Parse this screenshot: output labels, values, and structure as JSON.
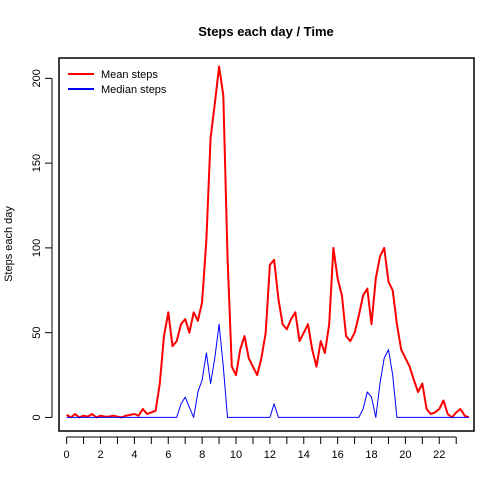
{
  "chart_data": {
    "type": "line",
    "title": "Steps each day / Time",
    "xlabel": "",
    "ylabel": "Steps each day",
    "xlim": [
      0,
      23.92
    ],
    "ylim": [
      0,
      210
    ],
    "x_ticks": [
      0,
      2,
      4,
      6,
      8,
      10,
      12,
      14,
      16,
      18,
      20,
      22
    ],
    "x_minor_ticks": [
      1,
      3,
      5,
      7,
      9,
      11,
      13,
      15,
      17,
      19,
      21,
      23
    ],
    "y_ticks": [
      0,
      50,
      100,
      150,
      200
    ],
    "grid": false,
    "legend": {
      "position": "top-left"
    },
    "series": [
      {
        "name": "Mean steps",
        "color": "#ff0000",
        "x": [
          0,
          0.25,
          0.5,
          0.75,
          1,
          1.25,
          1.5,
          1.75,
          2,
          2.25,
          2.5,
          2.75,
          3,
          3.25,
          3.5,
          3.75,
          4,
          4.25,
          4.5,
          4.75,
          5,
          5.25,
          5.5,
          5.75,
          6,
          6.25,
          6.5,
          6.75,
          7,
          7.25,
          7.5,
          7.75,
          8,
          8.25,
          8.5,
          8.75,
          9,
          9.25,
          9.5,
          9.75,
          10,
          10.25,
          10.5,
          10.75,
          11,
          11.25,
          11.5,
          11.75,
          12,
          12.25,
          12.5,
          12.75,
          13,
          13.25,
          13.5,
          13.75,
          14,
          14.25,
          14.5,
          14.75,
          15,
          15.25,
          15.5,
          15.75,
          16,
          16.25,
          16.5,
          16.75,
          17,
          17.25,
          17.5,
          17.75,
          18,
          18.25,
          18.5,
          18.75,
          19,
          19.25,
          19.5,
          19.75,
          20,
          20.25,
          20.5,
          20.75,
          21,
          21.25,
          21.5,
          21.75,
          22,
          22.25,
          22.5,
          22.75,
          23,
          23.25,
          23.5,
          23.75
        ],
        "values": [
          1.5,
          0,
          2,
          0,
          1,
          0.5,
          2,
          0,
          1,
          0.5,
          0.5,
          1,
          0.5,
          0,
          1,
          1.5,
          2,
          1,
          5,
          2,
          3,
          4,
          20,
          48,
          62,
          42,
          45,
          55,
          58,
          50,
          62,
          57,
          68,
          105,
          165,
          185,
          207,
          190,
          95,
          30,
          25,
          40,
          48,
          35,
          30,
          25,
          35,
          50,
          90,
          93,
          70,
          55,
          52,
          58,
          62,
          45,
          50,
          55,
          40,
          30,
          45,
          38,
          55,
          100,
          82,
          72,
          48,
          45,
          50,
          60,
          72,
          76,
          55,
          82,
          95,
          100,
          80,
          75,
          55,
          40,
          35,
          30,
          22,
          15,
          20,
          5,
          2,
          3,
          5,
          10,
          2,
          0,
          3,
          5,
          1,
          0
        ]
      },
      {
        "name": "Median steps",
        "color": "#0000ff",
        "x": [
          0,
          0.25,
          0.5,
          0.75,
          1,
          1.25,
          1.5,
          1.75,
          2,
          2.25,
          2.5,
          2.75,
          3,
          3.25,
          3.5,
          3.75,
          4,
          4.25,
          4.5,
          4.75,
          5,
          5.25,
          5.5,
          5.75,
          6,
          6.25,
          6.5,
          6.75,
          7,
          7.25,
          7.5,
          7.75,
          8,
          8.25,
          8.5,
          8.75,
          9,
          9.25,
          9.5,
          9.75,
          10,
          10.25,
          10.5,
          10.75,
          11,
          11.25,
          11.5,
          11.75,
          12,
          12.25,
          12.5,
          12.75,
          13,
          13.25,
          13.5,
          13.75,
          14,
          14.25,
          14.5,
          14.75,
          15,
          15.25,
          15.5,
          15.75,
          16,
          16.25,
          16.5,
          16.75,
          17,
          17.25,
          17.5,
          17.75,
          18,
          18.25,
          18.5,
          18.75,
          19,
          19.25,
          19.5,
          19.75,
          20,
          20.25,
          20.5,
          20.75,
          21,
          21.25,
          21.5,
          21.75,
          22,
          22.25,
          22.5,
          22.75,
          23,
          23.25,
          23.5,
          23.75
        ],
        "values": [
          0,
          0,
          0,
          0,
          0,
          0,
          0,
          0,
          0,
          0,
          0,
          0,
          0,
          0,
          0,
          0,
          0,
          0,
          0,
          0,
          0,
          0,
          0,
          0,
          0,
          0,
          0,
          8,
          12,
          6,
          0,
          15,
          22,
          38,
          20,
          35,
          55,
          30,
          0,
          0,
          0,
          0,
          0,
          0,
          0,
          0,
          0,
          0,
          0,
          8,
          0,
          0,
          0,
          0,
          0,
          0,
          0,
          0,
          0,
          0,
          0,
          0,
          0,
          0,
          0,
          0,
          0,
          0,
          0,
          0,
          5,
          15,
          12,
          0,
          20,
          35,
          40,
          25,
          0,
          0,
          0,
          0,
          0,
          0,
          0,
          0,
          0,
          0,
          0,
          0,
          0,
          0,
          0,
          0,
          0,
          0
        ]
      }
    ]
  }
}
